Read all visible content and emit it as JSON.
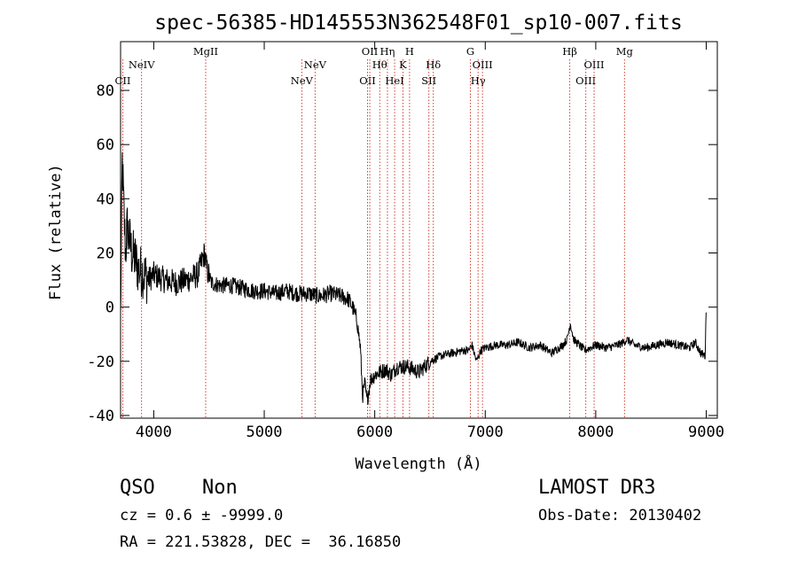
{
  "chart_data": {
    "type": "line",
    "title": "spec-56385-HD145553N362548F01_sp10-007.fits",
    "xlabel": "Wavelength (Å)",
    "ylabel": "Flux (relative)",
    "xlim": [
      3700,
      9100
    ],
    "ylim": [
      -41,
      98
    ],
    "xticks": [
      4000,
      5000,
      6000,
      7000,
      8000,
      9000
    ],
    "yticks": [
      -40,
      -20,
      0,
      20,
      40,
      60,
      80
    ],
    "grid": false,
    "series": [
      {
        "name": "flux",
        "x": [
          3700,
          3715,
          3730,
          3745,
          3760,
          3780,
          3800,
          3830,
          3860,
          3900,
          3950,
          4000,
          4100,
          4200,
          4300,
          4400,
          4460,
          4480,
          4520,
          4600,
          4700,
          4800,
          4900,
          5000,
          5100,
          5200,
          5300,
          5400,
          5500,
          5600,
          5700,
          5760,
          5800,
          5840,
          5870,
          5890,
          5910,
          5930,
          5960,
          6000,
          6050,
          6100,
          6150,
          6200,
          6300,
          6400,
          6500,
          6600,
          6700,
          6800,
          6850,
          6880,
          6920,
          6960,
          7000,
          7100,
          7200,
          7300,
          7400,
          7500,
          7600,
          7700,
          7740,
          7770,
          7800,
          7850,
          7900,
          8000,
          8100,
          8200,
          8250,
          8280,
          8350,
          8450,
          8550,
          8650,
          8750,
          8850,
          8900,
          8950,
          8990,
          9000
        ],
        "y": [
          -5,
          55,
          35,
          20,
          30,
          25,
          20,
          18,
          14,
          13,
          10,
          12,
          10,
          9,
          10,
          12,
          20,
          14,
          9,
          8,
          8,
          7,
          6,
          6,
          5,
          6,
          5,
          5,
          4,
          5,
          4,
          3,
          0,
          -5,
          -15,
          -33,
          -28,
          -35,
          -27,
          -25,
          -24,
          -23,
          -25,
          -22,
          -22,
          -24,
          -20,
          -18,
          -17,
          -16,
          -16,
          -14,
          -20,
          -16,
          -15,
          -14,
          -14,
          -13,
          -15,
          -14,
          -17,
          -14,
          -12,
          -6,
          -12,
          -14,
          -16,
          -14,
          -15,
          -14,
          -13,
          -12,
          -14,
          -15,
          -14,
          -13,
          -14,
          -15,
          -13,
          -17,
          -18,
          0
        ]
      }
    ],
    "line_markers": [
      {
        "label": "CII",
        "x": 3720,
        "row": 3
      },
      {
        "label": "NeIV",
        "x": 3890,
        "row": 1
      },
      {
        "label": "MgII",
        "x": 4470,
        "row": 0
      },
      {
        "label": "NeV",
        "x": 5340,
        "row": 3
      },
      {
        "label": "NeV",
        "x": 5460,
        "row": 1
      },
      {
        "label": "OII",
        "x": 5935,
        "row": 3
      },
      {
        "label": "OII",
        "x": 5955,
        "row": 0
      },
      {
        "label": "Hθ",
        "x": 6045,
        "row": 1
      },
      {
        "label": "Hη",
        "x": 6115,
        "row": 0
      },
      {
        "label": "HeI",
        "x": 6180,
        "row": 3
      },
      {
        "label": "K",
        "x": 6255,
        "row": 1
      },
      {
        "label": "H",
        "x": 6315,
        "row": 0
      },
      {
        "label": "SII",
        "x": 6490,
        "row": 3
      },
      {
        "label": "Hδ",
        "x": 6530,
        "row": 1
      },
      {
        "label": "G",
        "x": 6865,
        "row": 0
      },
      {
        "label": "Hγ",
        "x": 6935,
        "row": 3
      },
      {
        "label": "OIII",
        "x": 6975,
        "row": 1
      },
      {
        "label": "Hβ",
        "x": 7765,
        "row": 0
      },
      {
        "label": "OIII",
        "x": 7910,
        "row": 3
      },
      {
        "label": "OIII",
        "x": 7985,
        "row": 1
      },
      {
        "label": "Mg",
        "x": 8260,
        "row": 0
      }
    ]
  },
  "info": {
    "class": "QSO",
    "subclass": "Non",
    "survey": "LAMOST DR3",
    "cz": "cz = 0.6 ± -9999.0",
    "obs_date": "Obs-Date: 20130402",
    "radec": "RA = 221.53828, DEC =  36.16850"
  }
}
